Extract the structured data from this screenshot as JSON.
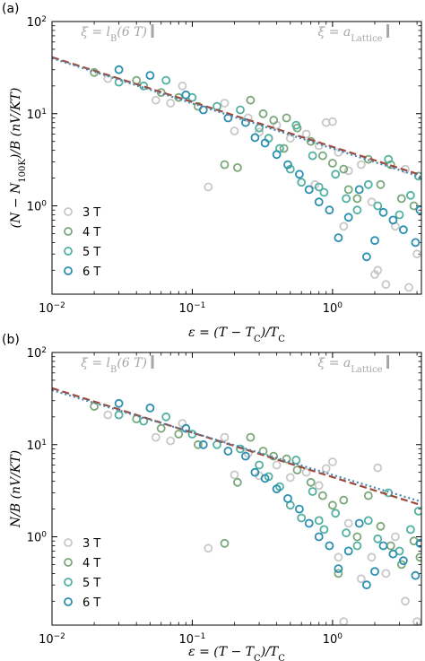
{
  "colors": {
    "3T": "#c8c8c8",
    "4T": "#7aa87a",
    "5T": "#52b0a0",
    "6T": "#2a8fb0",
    "fit_red": "#a04a3a",
    "fit_blue": "#4a86b0",
    "annotation": "#a6a6a6"
  },
  "chart_data": [
    {
      "type": "scatter",
      "panel_label": "(a)",
      "xlabel": "ε = (T − T_C)/T_C",
      "ylabel": "(N − N_100K)/B (nV/KT)",
      "xscale": "log",
      "yscale": "log",
      "xlim": [
        0.01,
        4.3
      ],
      "ylim": [
        0.11,
        100
      ],
      "x_ticks": [
        {
          "value": 0.01,
          "base": "10",
          "exp": "−2"
        },
        {
          "value": 0.1,
          "base": "10",
          "exp": "−1"
        },
        {
          "value": 1,
          "base": "10",
          "exp": "0"
        }
      ],
      "y_ticks": [
        {
          "value": 1,
          "base": "10",
          "exp": "0"
        },
        {
          "value": 10,
          "base": "10",
          "exp": "1"
        },
        {
          "value": 100,
          "base": "10",
          "exp": "2"
        }
      ],
      "annotations": [
        {
          "label": "ξ = l_B(6 T)",
          "x": 0.052
        },
        {
          "label": "ξ = a_Lattice",
          "x": 2.48
        }
      ],
      "legend_location": "lower-left",
      "fit_lines": [
        {
          "color_key": "fit_red",
          "x": [
            0.01,
            4.3
          ],
          "y": [
            41,
            2.15
          ]
        },
        {
          "color_key": "fit_blue",
          "x": [
            0.01,
            4.3
          ],
          "y": [
            40,
            2.05
          ]
        }
      ],
      "series": [
        {
          "name": "3 T",
          "color_key": "3T",
          "points": [
            [
              0.025,
              24
            ],
            [
              0.055,
              14
            ],
            [
              0.07,
              13
            ],
            [
              0.085,
              20
            ],
            [
              0.13,
              1.6
            ],
            [
              0.17,
              13
            ],
            [
              0.2,
              6.5
            ],
            [
              0.25,
              9
            ],
            [
              0.3,
              6.3
            ],
            [
              0.4,
              7.5
            ],
            [
              0.5,
              5.4
            ],
            [
              0.65,
              6
            ],
            [
              0.8,
              4.5
            ],
            [
              0.9,
              8
            ],
            [
              1.0,
              8.2
            ],
            [
              1.1,
              3.8
            ],
            [
              1.3,
              2.4
            ],
            [
              1.6,
              2.8
            ],
            [
              1.9,
              1.1
            ],
            [
              2.1,
              0.2
            ],
            [
              2.4,
              0.14
            ],
            [
              2.8,
              0.6
            ],
            [
              3.3,
              2.5
            ],
            [
              4.0,
              0.3
            ],
            [
              0.75,
              1.7
            ],
            [
              1.2,
              0.6
            ],
            [
              2.0,
              0.18
            ],
            [
              3.5,
              0.13
            ]
          ]
        },
        {
          "name": "4 T",
          "color_key": "4T",
          "points": [
            [
              0.02,
              28
            ],
            [
              0.04,
              23
            ],
            [
              0.06,
              17
            ],
            [
              0.08,
              15
            ],
            [
              0.11,
              12
            ],
            [
              0.17,
              2.8
            ],
            [
              0.21,
              2.6
            ],
            [
              0.26,
              14
            ],
            [
              0.32,
              10
            ],
            [
              0.38,
              8.5
            ],
            [
              0.47,
              9
            ],
            [
              0.56,
              7
            ],
            [
              0.7,
              5
            ],
            [
              0.85,
              3.5
            ],
            [
              1.0,
              2.9
            ],
            [
              1.2,
              2.5
            ],
            [
              1.5,
              1.2
            ],
            [
              1.8,
              3.2
            ],
            [
              2.2,
              1.7
            ],
            [
              2.6,
              2.8
            ],
            [
              3.1,
              1.2
            ],
            [
              3.8,
              1.0
            ],
            [
              0.45,
              4.2
            ],
            [
              1.3,
              1.5
            ]
          ]
        },
        {
          "name": "5 T",
          "color_key": "5T",
          "points": [
            [
              0.03,
              22
            ],
            [
              0.045,
              20
            ],
            [
              0.065,
              23
            ],
            [
              0.1,
              15
            ],
            [
              0.15,
              12
            ],
            [
              0.22,
              11
            ],
            [
              0.3,
              7
            ],
            [
              0.35,
              5.4
            ],
            [
              0.42,
              4.2
            ],
            [
              0.5,
              2.5
            ],
            [
              0.6,
              1.8
            ],
            [
              0.72,
              3.5
            ],
            [
              0.87,
              1.4
            ],
            [
              1.05,
              2.2
            ],
            [
              1.25,
              1.2
            ],
            [
              1.5,
              0.9
            ],
            [
              1.8,
              1.7
            ],
            [
              2.1,
              1.0
            ],
            [
              2.5,
              3.2
            ],
            [
              3.0,
              0.8
            ],
            [
              3.6,
              1.3
            ],
            [
              4.1,
              2.1
            ],
            [
              0.55,
              7.5
            ],
            [
              0.8,
              1.6
            ]
          ]
        },
        {
          "name": "6 T",
          "color_key": "6T",
          "points": [
            [
              0.03,
              30
            ],
            [
              0.05,
              26
            ],
            [
              0.09,
              16
            ],
            [
              0.12,
              11
            ],
            [
              0.18,
              9
            ],
            [
              0.24,
              8
            ],
            [
              0.28,
              5.5
            ],
            [
              0.33,
              4.8
            ],
            [
              0.4,
              3.6
            ],
            [
              0.48,
              2.8
            ],
            [
              0.58,
              2.2
            ],
            [
              0.68,
              1.5
            ],
            [
              0.8,
              1.1
            ],
            [
              0.95,
              0.9
            ],
            [
              1.1,
              0.45
            ],
            [
              1.3,
              0.75
            ],
            [
              1.55,
              1.5
            ],
            [
              1.75,
              0.28
            ],
            [
              2.0,
              0.42
            ],
            [
              2.3,
              0.85
            ],
            [
              2.7,
              0.7
            ],
            [
              3.2,
              0.55
            ],
            [
              3.9,
              0.4
            ],
            [
              4.2,
              0.9
            ]
          ]
        }
      ]
    },
    {
      "type": "scatter",
      "panel_label": "(b)",
      "xlabel": "ε = (T − T_C)/T_C",
      "ylabel": "N/B (nV/KT)",
      "xscale": "log",
      "yscale": "log",
      "xlim": [
        0.01,
        4.3
      ],
      "ylim": [
        0.11,
        100
      ],
      "x_ticks": [
        {
          "value": 0.01,
          "base": "10",
          "exp": "−2"
        },
        {
          "value": 0.1,
          "base": "10",
          "exp": "−1"
        },
        {
          "value": 1,
          "base": "10",
          "exp": "0"
        }
      ],
      "y_ticks": [
        {
          "value": 1,
          "base": "10",
          "exp": "0"
        },
        {
          "value": 10,
          "base": "10",
          "exp": "1"
        },
        {
          "value": 100,
          "base": "10",
          "exp": "2"
        }
      ],
      "annotations": [
        {
          "label": "ξ = l_B(6 T)",
          "x": 0.052
        },
        {
          "label": "ξ = a_Lattice",
          "x": 2.48
        }
      ],
      "legend_location": "lower-left",
      "fit_lines": [
        {
          "color_key": "fit_red",
          "x": [
            0.01,
            4.3
          ],
          "y": [
            41,
            2.2
          ]
        },
        {
          "color_key": "fit_blue",
          "x": [
            0.01,
            4.3
          ],
          "y": [
            39,
            2.4
          ]
        }
      ],
      "series": [
        {
          "name": "3 T",
          "color_key": "3T",
          "points": [
            [
              0.025,
              21
            ],
            [
              0.055,
              12
            ],
            [
              0.07,
              11
            ],
            [
              0.085,
              17
            ],
            [
              0.13,
              0.75
            ],
            [
              0.17,
              12
            ],
            [
              0.2,
              4.7
            ],
            [
              0.25,
              8
            ],
            [
              0.3,
              4.6
            ],
            [
              0.4,
              6
            ],
            [
              0.5,
              4.4
            ],
            [
              0.65,
              5
            ],
            [
              0.8,
              3.6
            ],
            [
              0.9,
              5.5
            ],
            [
              1.0,
              6.5
            ],
            [
              1.1,
              0.6
            ],
            [
              1.3,
              1.4
            ],
            [
              1.6,
              0.35
            ],
            [
              1.9,
              0.6
            ],
            [
              2.1,
              5.6
            ],
            [
              2.4,
              0.4
            ],
            [
              2.8,
              1.0
            ],
            [
              3.3,
              0.2
            ],
            [
              4.0,
              0.12
            ],
            [
              1.2,
              0.12
            ]
          ]
        },
        {
          "name": "4 T",
          "color_key": "4T",
          "points": [
            [
              0.02,
              26
            ],
            [
              0.04,
              19
            ],
            [
              0.06,
              15
            ],
            [
              0.08,
              13
            ],
            [
              0.11,
              10
            ],
            [
              0.17,
              0.85
            ],
            [
              0.21,
              3.9
            ],
            [
              0.26,
              12
            ],
            [
              0.32,
              8.5
            ],
            [
              0.38,
              7.5
            ],
            [
              0.47,
              7
            ],
            [
              0.56,
              5.3
            ],
            [
              0.7,
              3.9
            ],
            [
              0.85,
              2.8
            ],
            [
              1.0,
              2.2
            ],
            [
              1.2,
              2.5
            ],
            [
              1.5,
              1.0
            ],
            [
              1.8,
              2.8
            ],
            [
              2.2,
              1.3
            ],
            [
              2.6,
              0.8
            ],
            [
              3.1,
              0.5
            ],
            [
              3.8,
              0.9
            ],
            [
              4.2,
              0.6
            ],
            [
              1.1,
              0.4
            ]
          ]
        },
        {
          "name": "5 T",
          "color_key": "5T",
          "points": [
            [
              0.03,
              21
            ],
            [
              0.045,
              18
            ],
            [
              0.065,
              20
            ],
            [
              0.1,
              13
            ],
            [
              0.15,
              10
            ],
            [
              0.22,
              9
            ],
            [
              0.3,
              6
            ],
            [
              0.35,
              4.5
            ],
            [
              0.42,
              3.5
            ],
            [
              0.5,
              2.2
            ],
            [
              0.6,
              1.6
            ],
            [
              0.72,
              3.1
            ],
            [
              0.87,
              1.2
            ],
            [
              1.05,
              1.8
            ],
            [
              1.25,
              1.1
            ],
            [
              1.5,
              0.8
            ],
            [
              1.8,
              1.5
            ],
            [
              2.1,
              0.95
            ],
            [
              2.5,
              3.0
            ],
            [
              3.0,
              0.7
            ],
            [
              3.6,
              1.2
            ],
            [
              4.1,
              1.9
            ],
            [
              0.55,
              6.8
            ],
            [
              0.8,
              1.5
            ]
          ]
        },
        {
          "name": "6 T",
          "color_key": "6T",
          "points": [
            [
              0.03,
              28
            ],
            [
              0.05,
              25
            ],
            [
              0.09,
              15
            ],
            [
              0.12,
              10
            ],
            [
              0.18,
              8.5
            ],
            [
              0.24,
              7.5
            ],
            [
              0.28,
              5
            ],
            [
              0.33,
              4.3
            ],
            [
              0.4,
              3.3
            ],
            [
              0.48,
              2.6
            ],
            [
              0.58,
              2.0
            ],
            [
              0.68,
              1.4
            ],
            [
              0.8,
              1.0
            ],
            [
              0.95,
              0.8
            ],
            [
              1.1,
              0.45
            ],
            [
              1.3,
              0.7
            ],
            [
              1.55,
              1.4
            ],
            [
              1.75,
              0.3
            ],
            [
              2.0,
              0.42
            ],
            [
              2.3,
              0.8
            ],
            [
              2.7,
              0.65
            ],
            [
              3.2,
              0.55
            ],
            [
              3.9,
              0.38
            ],
            [
              4.2,
              0.85
            ]
          ]
        }
      ]
    }
  ]
}
